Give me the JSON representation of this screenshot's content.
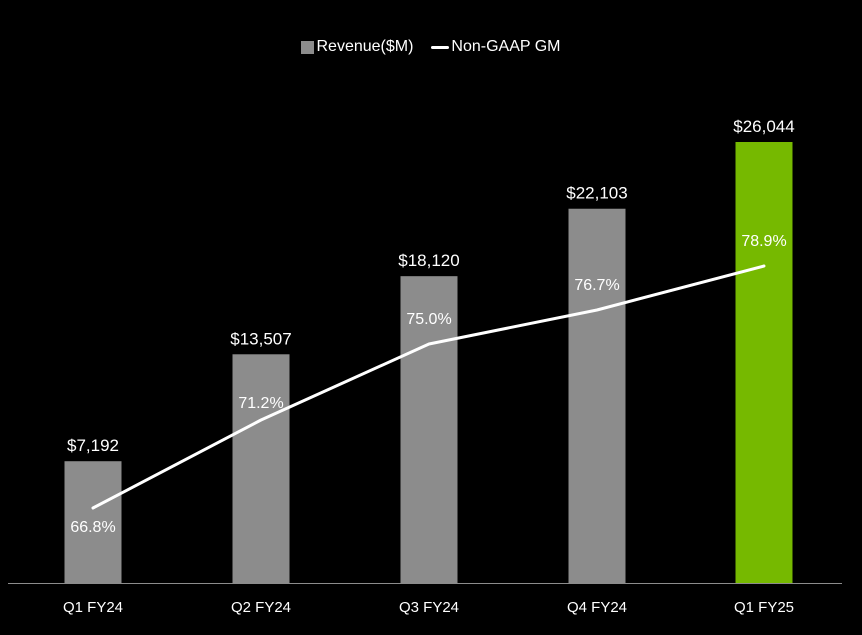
{
  "chart_data": {
    "type": "bar",
    "title": "",
    "xlabel": "",
    "ylabel": "",
    "categories": [
      "Q1 FY24",
      "Q2 FY24",
      "Q3 FY24",
      "Q4 FY24",
      "Q1 FY25"
    ],
    "series": [
      {
        "name": "Revenue($M)",
        "type": "bar",
        "values": [
          7192,
          13507,
          18120,
          22103,
          26044
        ],
        "labels": [
          "$7,192",
          "$13,507",
          "$18,120",
          "$22,103",
          "$26,044"
        ],
        "colors": [
          "#8c8c8c",
          "#8c8c8c",
          "#8c8c8c",
          "#8c8c8c",
          "#76b900"
        ]
      },
      {
        "name": "Non-GAAP GM",
        "type": "line",
        "values": [
          66.8,
          71.2,
          75.0,
          76.7,
          78.9
        ],
        "labels": [
          "66.8%",
          "71.2%",
          "75.0%",
          "76.7%",
          "78.9%"
        ],
        "color": "#ffffff"
      }
    ],
    "ylim_revenue": [
      0,
      30000
    ],
    "ylim_gm": [
      60,
      85
    ],
    "grid": false,
    "legend": "top-center"
  },
  "legend": {
    "revenue_label": "Revenue($M)",
    "gm_label": "Non-GAAP GM",
    "bar_color": "#8c8c8c"
  }
}
